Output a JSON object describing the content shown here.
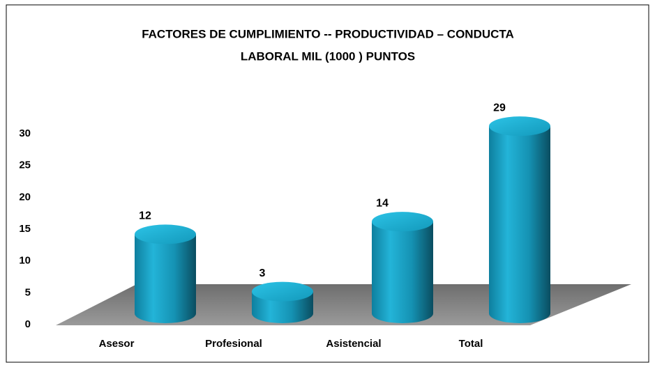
{
  "chart_data": {
    "type": "bar",
    "title": [
      "FACTORES  DE CUMPLIMIENTO -- PRODUCTIVIDAD – CONDUCTA",
      "LABORAL MIL (1000 ) PUNTOS"
    ],
    "categories": [
      "Asesor",
      "Profesional",
      "Asistencial",
      "Total"
    ],
    "values": [
      12,
      3,
      14,
      29
    ],
    "color": "#1ea8cc",
    "ylim": [
      0,
      30
    ],
    "yticks": [
      0,
      5,
      10,
      15,
      20,
      25,
      30
    ],
    "grid": false
  }
}
